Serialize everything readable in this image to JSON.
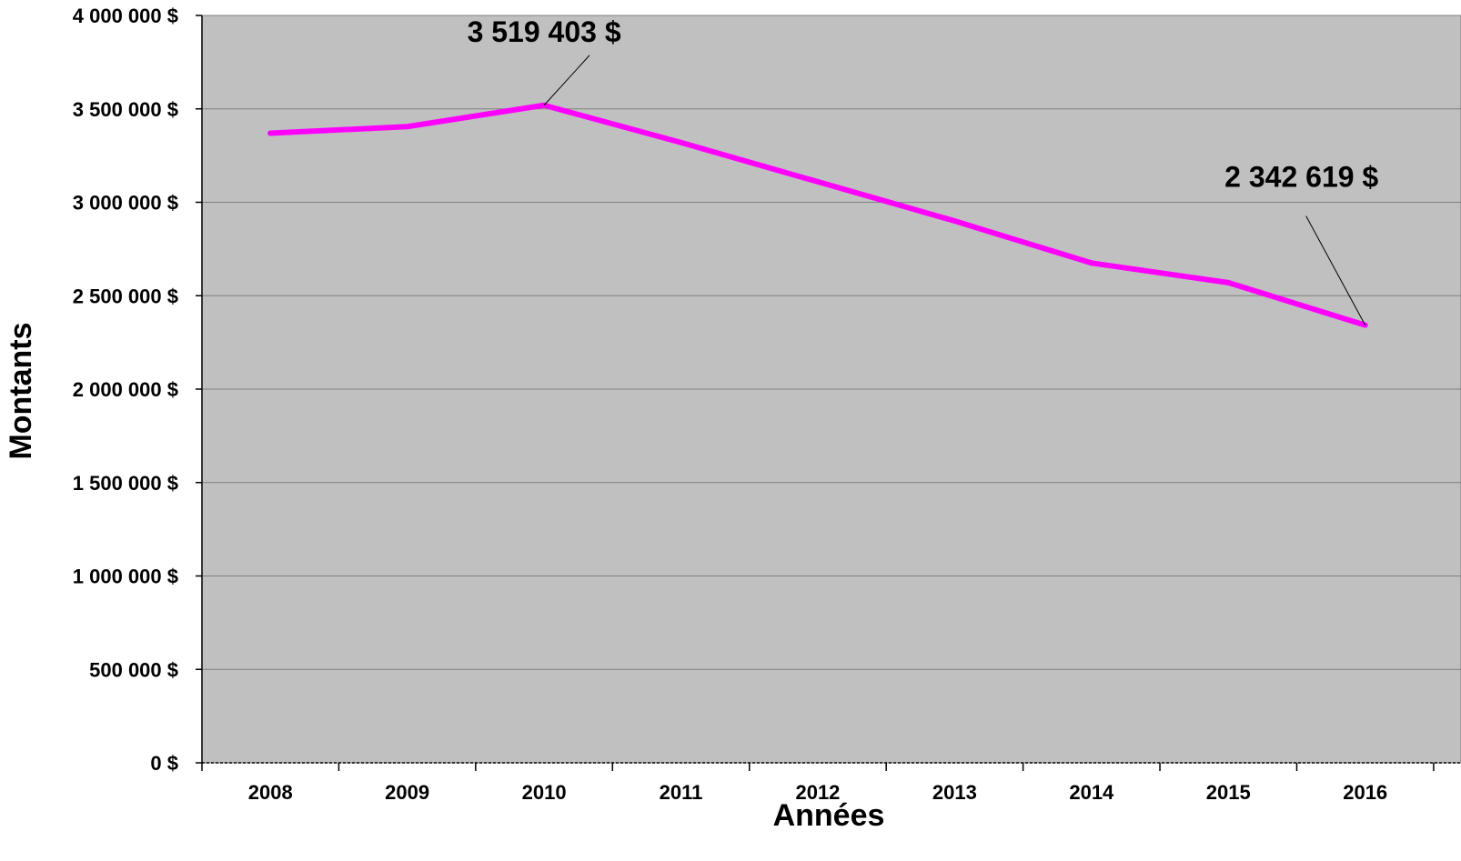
{
  "chart_data": {
    "type": "line",
    "title": "",
    "xlabel": "Années",
    "ylabel": "Montants",
    "categories": [
      "2008",
      "2009",
      "2010",
      "2011",
      "2012",
      "2013",
      "2014",
      "2015",
      "2016"
    ],
    "series": [
      {
        "values": [
          3370000,
          3405000,
          3519403,
          3320000,
          3110000,
          2900000,
          2675000,
          2570000,
          2342619
        ],
        "color": "#ff00ff"
      }
    ],
    "ylim": [
      0,
      4000000
    ],
    "yticks": [
      0,
      500000,
      1000000,
      1500000,
      2000000,
      2500000,
      3000000,
      3500000,
      4000000
    ],
    "ytick_labels": [
      "0 $",
      "500 000 $",
      "1 000 000 $",
      "1 500 000 $",
      "2 000 000 $",
      "2 500 000 $",
      "3 000 000 $",
      "3 500 000 $",
      "4 000 000 $"
    ],
    "grid": true,
    "plot_background": "#c0c0c0",
    "annotations": [
      {
        "text": "3 519 403  $",
        "category": "2010",
        "value": 3519403
      },
      {
        "text": "2 342 619  $",
        "category": "2016",
        "value": 2342619
      }
    ]
  }
}
